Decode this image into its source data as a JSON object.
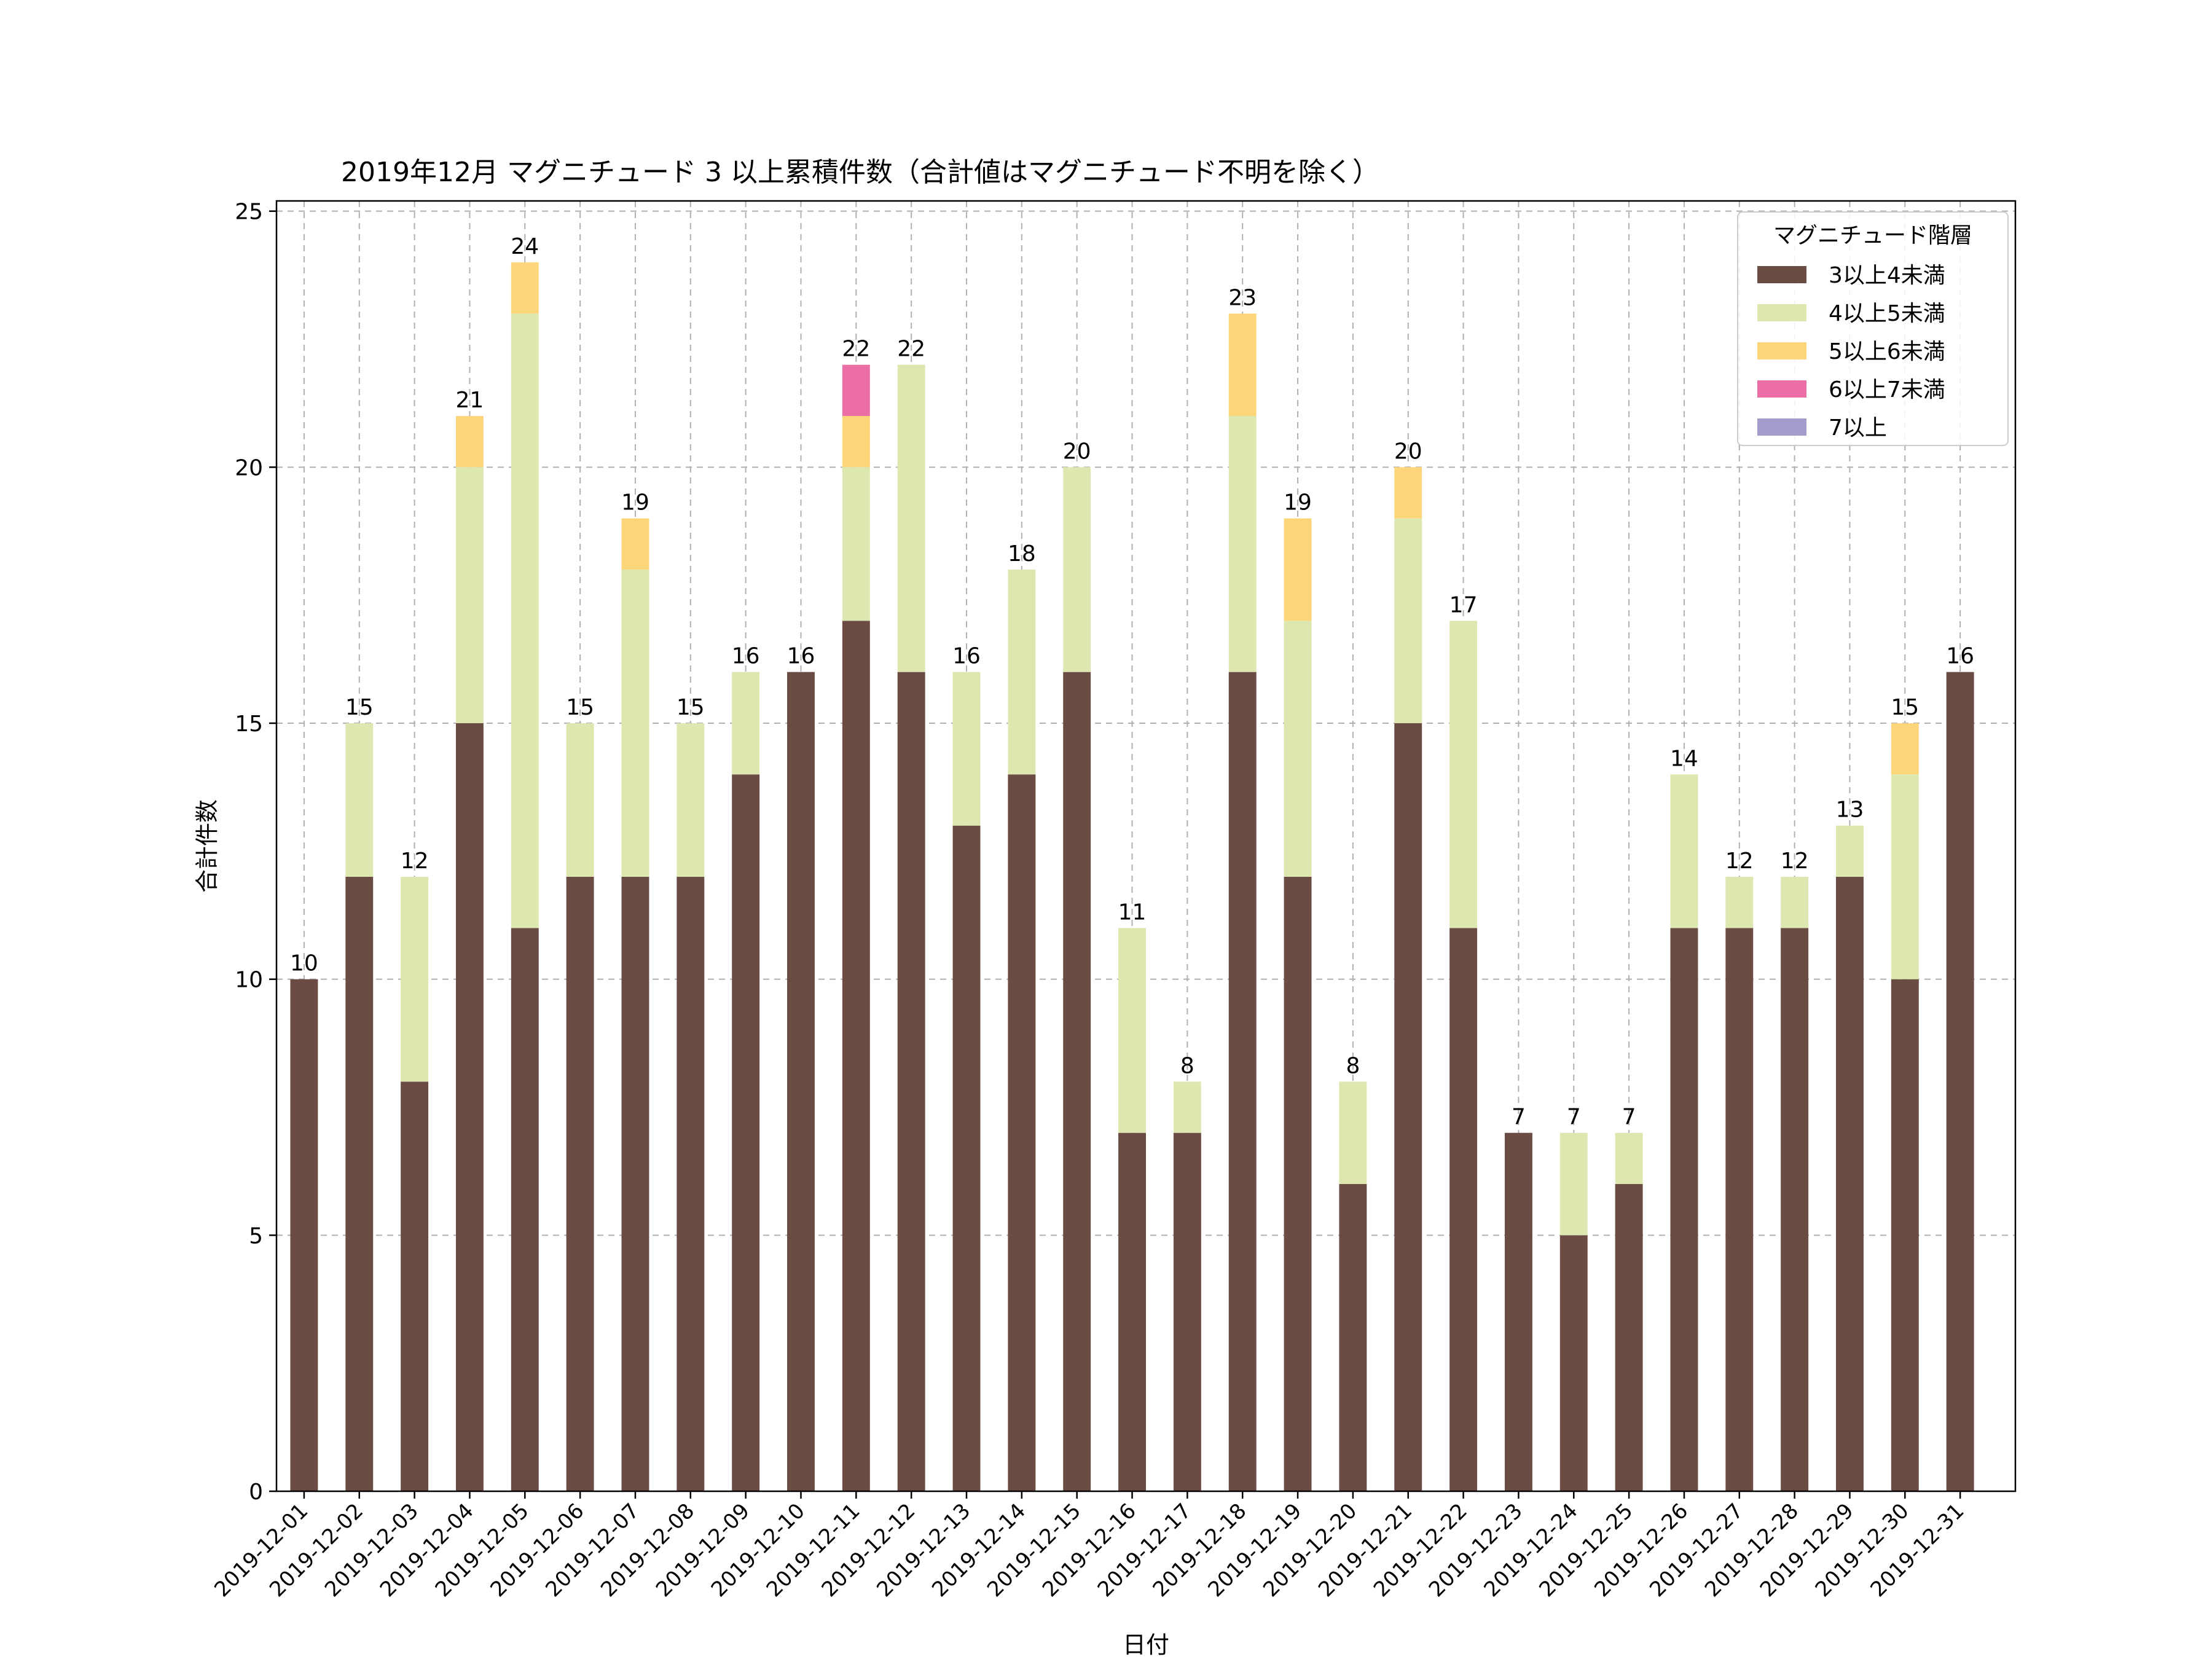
{
  "chart_data": {
    "type": "bar",
    "stacked": true,
    "title": "2019年12月 マグニチュード 3 以上累積件数（合計値はマグニチュード不明を除く）",
    "xlabel": "日付",
    "ylabel": "合計件数",
    "ylim": [
      0,
      25.2
    ],
    "yticks": [
      0,
      5,
      10,
      15,
      20,
      25
    ],
    "grid": true,
    "legend_position": "top-right",
    "legend_title": "マグニチュード階層",
    "categories": [
      "2019-12-01",
      "2019-12-02",
      "2019-12-03",
      "2019-12-04",
      "2019-12-05",
      "2019-12-06",
      "2019-12-07",
      "2019-12-08",
      "2019-12-09",
      "2019-12-10",
      "2019-12-11",
      "2019-12-12",
      "2019-12-13",
      "2019-12-14",
      "2019-12-15",
      "2019-12-16",
      "2019-12-17",
      "2019-12-18",
      "2019-12-19",
      "2019-12-20",
      "2019-12-21",
      "2019-12-22",
      "2019-12-23",
      "2019-12-24",
      "2019-12-25",
      "2019-12-26",
      "2019-12-27",
      "2019-12-28",
      "2019-12-29",
      "2019-12-30",
      "2019-12-31"
    ],
    "series": [
      {
        "name": "3以上4未満",
        "color": "#6b4c45",
        "values": [
          10,
          12,
          8,
          15,
          11,
          12,
          12,
          12,
          14,
          16,
          17,
          16,
          13,
          14,
          16,
          7,
          7,
          16,
          12,
          6,
          15,
          11,
          7,
          5,
          6,
          11,
          11,
          11,
          12,
          10,
          16
        ]
      },
      {
        "name": "4以上5未満",
        "color": "#dde8b0",
        "values": [
          0,
          3,
          4,
          5,
          12,
          3,
          6,
          3,
          2,
          0,
          3,
          6,
          3,
          4,
          4,
          4,
          1,
          5,
          5,
          2,
          4,
          6,
          0,
          2,
          1,
          3,
          1,
          1,
          1,
          4,
          0
        ]
      },
      {
        "name": "5以上6未満",
        "color": "#fdd57a",
        "values": [
          0,
          0,
          0,
          1,
          1,
          0,
          1,
          0,
          0,
          0,
          1,
          0,
          0,
          0,
          0,
          0,
          0,
          2,
          2,
          0,
          1,
          0,
          0,
          0,
          0,
          0,
          0,
          0,
          0,
          1,
          0
        ]
      },
      {
        "name": "6以上7未満",
        "color": "#ec6ea6",
        "values": [
          0,
          0,
          0,
          0,
          0,
          0,
          0,
          0,
          0,
          0,
          1,
          0,
          0,
          0,
          0,
          0,
          0,
          0,
          0,
          0,
          0,
          0,
          0,
          0,
          0,
          0,
          0,
          0,
          0,
          0,
          0
        ]
      },
      {
        "name": "7以上",
        "color": "#a59ccb",
        "values": [
          0,
          0,
          0,
          0,
          0,
          0,
          0,
          0,
          0,
          0,
          0,
          0,
          0,
          0,
          0,
          0,
          0,
          0,
          0,
          0,
          0,
          0,
          0,
          0,
          0,
          0,
          0,
          0,
          0,
          0,
          0
        ]
      }
    ],
    "totals": [
      10,
      15,
      12,
      21,
      24,
      15,
      19,
      15,
      16,
      16,
      22,
      22,
      16,
      18,
      20,
      11,
      8,
      23,
      19,
      8,
      20,
      17,
      7,
      7,
      7,
      14,
      12,
      12,
      13,
      15,
      16
    ]
  }
}
